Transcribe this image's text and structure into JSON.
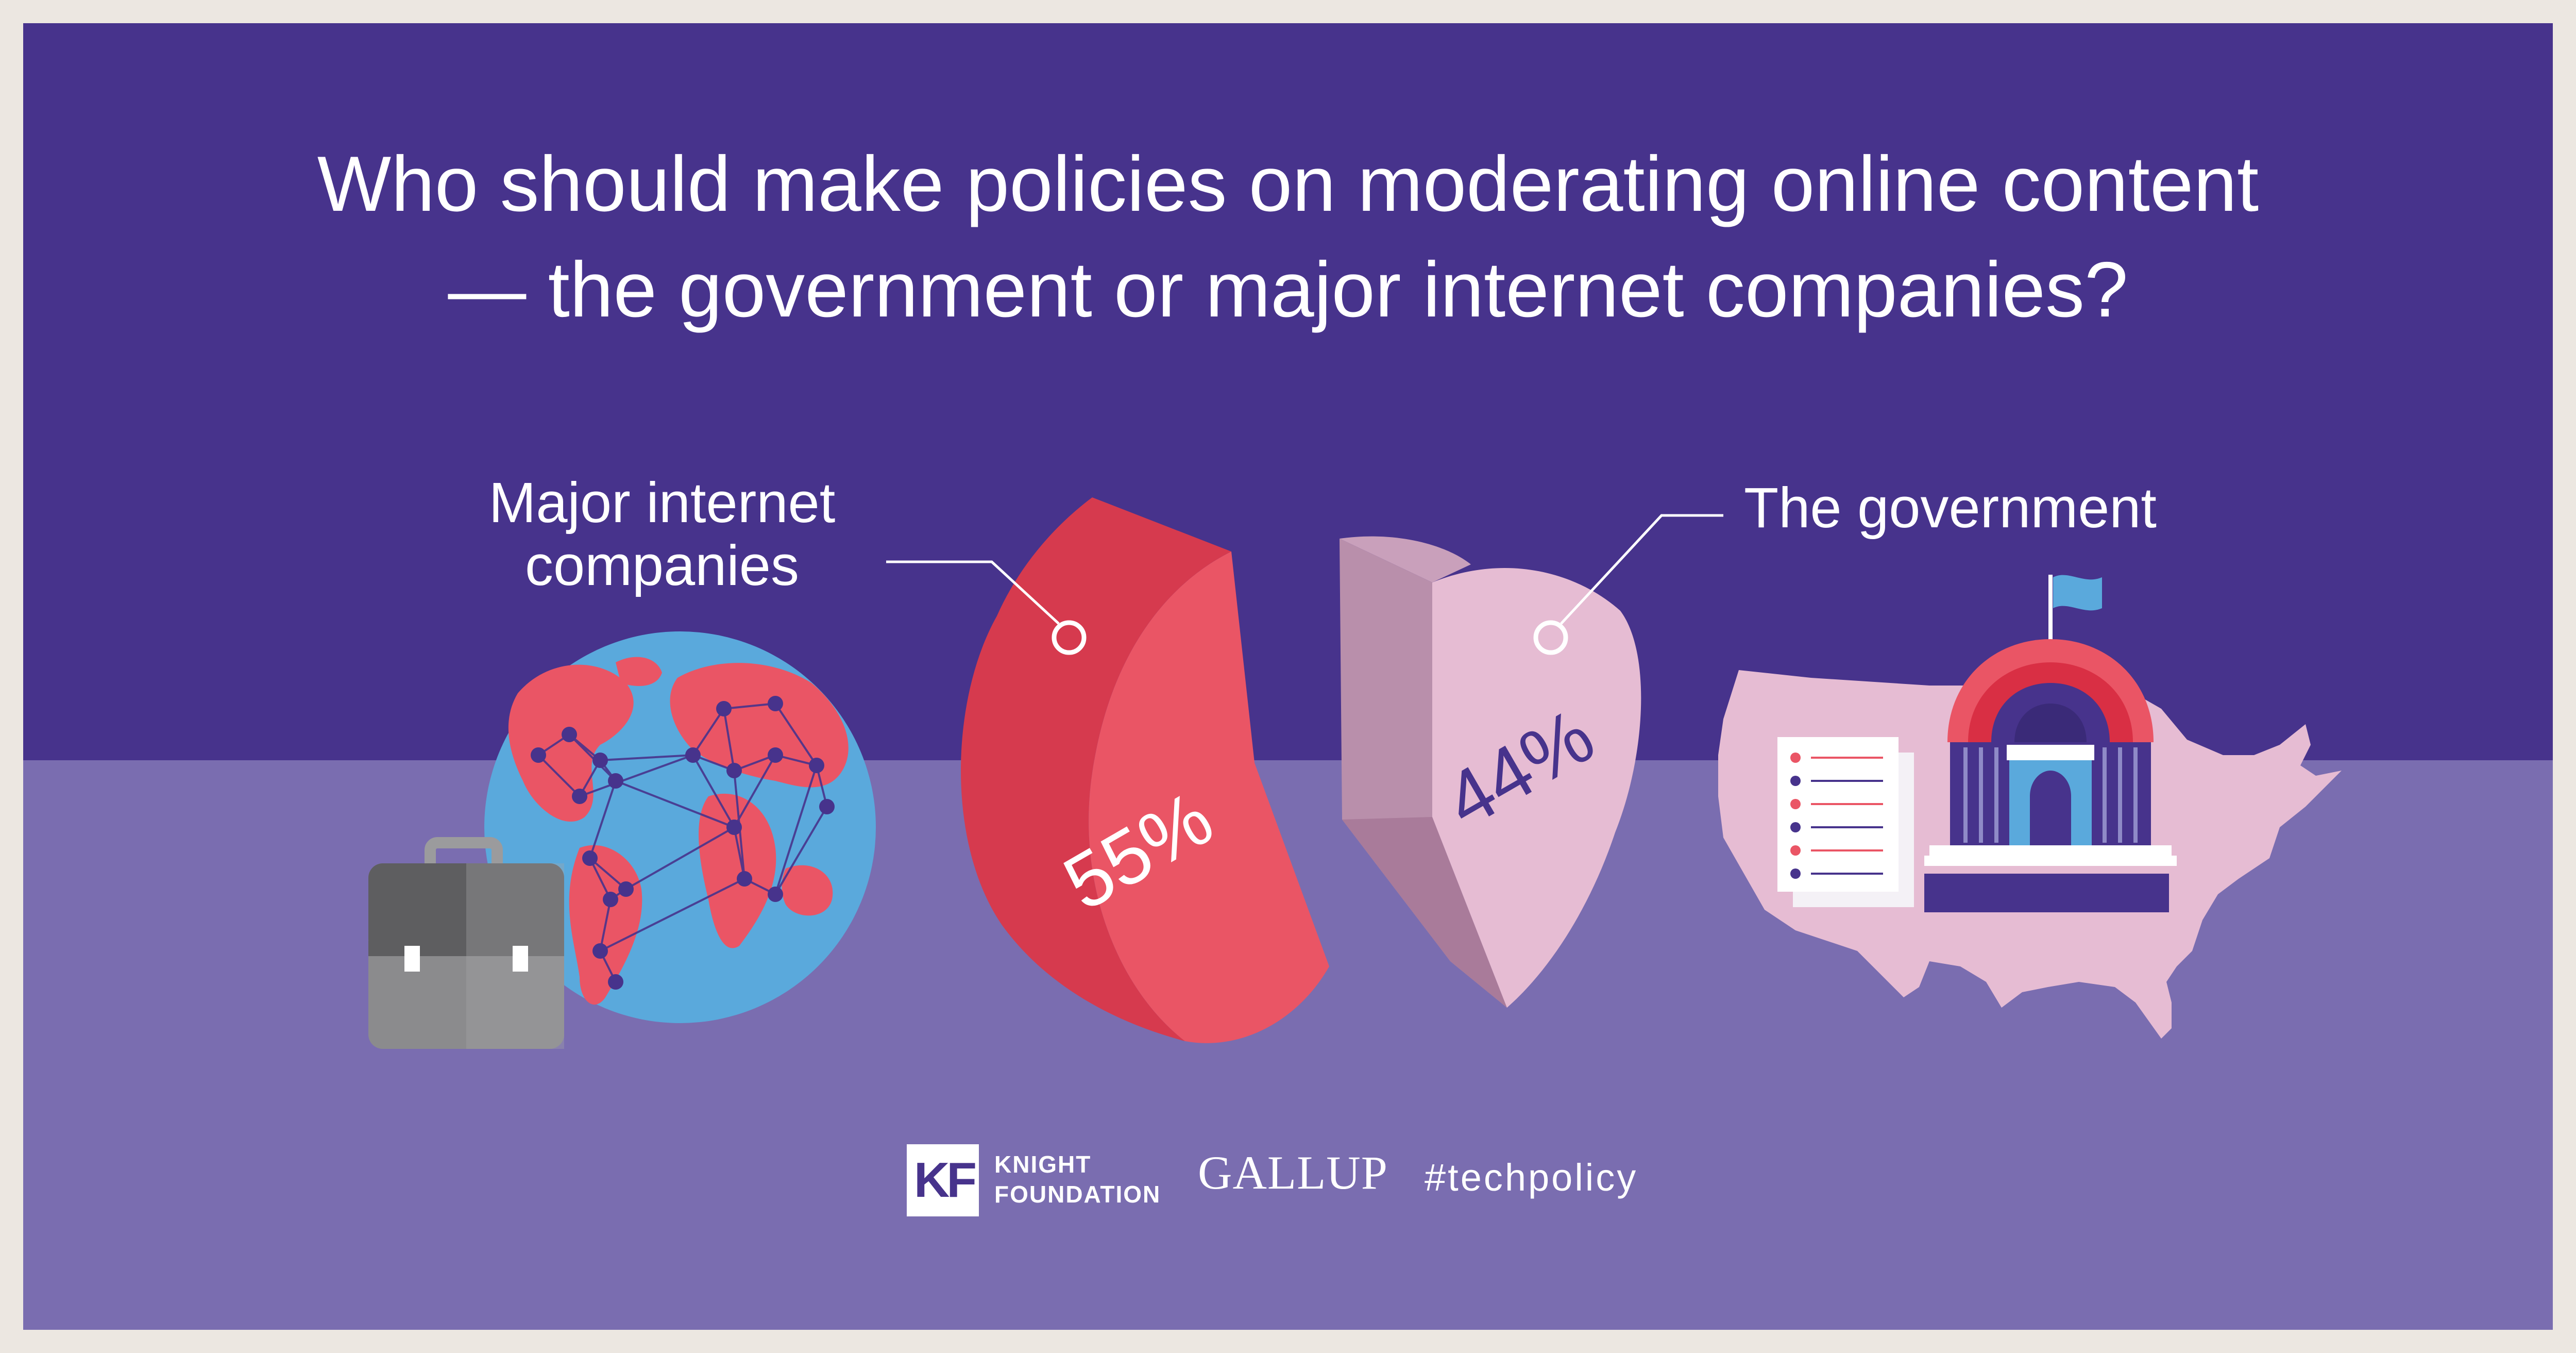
{
  "title": {
    "line1": "Who should make policies on moderating online content",
    "line2": "— the government or major internet companies?"
  },
  "labels": {
    "companies_line1": "Major internet",
    "companies_line2": "companies",
    "government": "The government"
  },
  "footer": {
    "kf_mark": "KF",
    "kf_line1": "KNIGHT",
    "kf_line2": "FOUNDATION",
    "gallup": "GALLUP",
    "hashtag": "#techpolicy"
  },
  "colors": {
    "background_top": "#47338c",
    "background_bottom": "#7a6db0",
    "companies_slice": "#ea5565",
    "government_slice": "#e6bcd3",
    "globe_ocean": "#5aa9dc",
    "network_nodes": "#47338c"
  },
  "icons": [
    "globe-network-icon",
    "briefcase-icon",
    "usa-map-icon",
    "government-building-icon",
    "document-list-icon",
    "flag-icon"
  ],
  "chart_data": {
    "type": "pie",
    "title": "Who should make policies on moderating online content — the government or major internet companies?",
    "slices": [
      {
        "label": "Major internet companies",
        "value": 55,
        "display": "55%"
      },
      {
        "label": "The government",
        "value": 44,
        "display": "44%"
      }
    ]
  }
}
